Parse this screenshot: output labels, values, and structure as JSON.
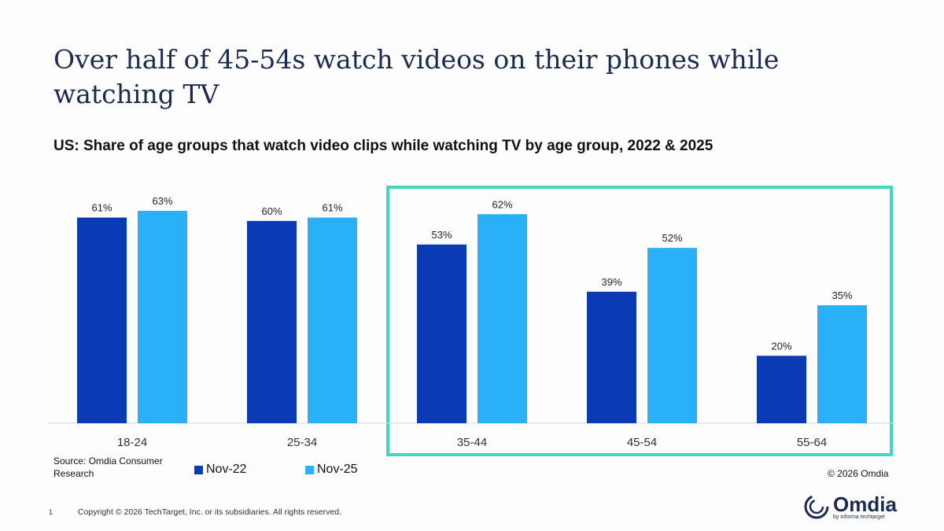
{
  "title": "Over half of 45-54s watch videos on their phones while watching TV",
  "footer": {
    "source": "Source: Omdia Consumer Research",
    "copyright_omdia": "© 2026 Omdia",
    "page_number": "1",
    "copyright": "Copyright © 2026 TechTarget, Inc. or its subsidiaries. All rights reserved.",
    "logo_text": "Omdia",
    "logo_sub": "by informa techtarget"
  },
  "colors": {
    "nov22": "#0a3bb5",
    "nov25": "#29b0f6",
    "highlight": "#3ed8c2"
  },
  "chart_data": {
    "type": "bar",
    "title": "US: Share of age groups that watch video clips while watching TV by age group, 2022 & 2025",
    "categories": [
      "18-24",
      "25-34",
      "35-44",
      "45-54",
      "55-64"
    ],
    "series": [
      {
        "name": "Nov-22",
        "values": [
          61,
          60,
          53,
          39,
          20
        ],
        "labels": [
          "61%",
          "60%",
          "53%",
          "39%",
          "20%"
        ]
      },
      {
        "name": "Nov-25",
        "values": [
          63,
          61,
          62,
          52,
          35
        ],
        "labels": [
          "63%",
          "61%",
          "62%",
          "52%",
          "35%"
        ]
      }
    ],
    "ylim": [
      0,
      100
    ],
    "grid": false,
    "legend": "bottom",
    "highlighted_categories": [
      "35-44",
      "45-54",
      "55-64"
    ]
  }
}
